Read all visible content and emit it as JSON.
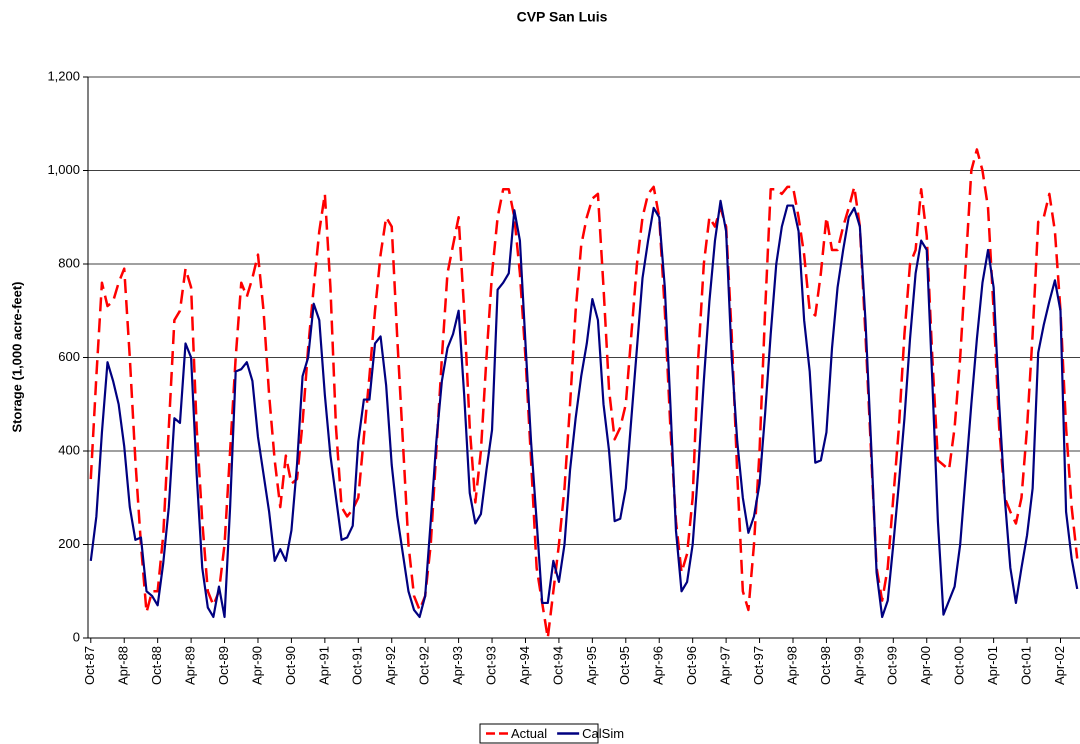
{
  "chart_data": {
    "type": "line",
    "title": "CVP San Luis",
    "y_label": "Storage (1,000 acre-feet)",
    "categories": [
      "Oct-87",
      null,
      null,
      null,
      null,
      null,
      "Apr-88",
      null,
      null,
      null,
      null,
      null,
      "Oct-88",
      null,
      null,
      null,
      null,
      null,
      "Apr-89",
      null,
      null,
      null,
      null,
      null,
      "Oct-89",
      null,
      null,
      null,
      null,
      null,
      "Apr-90",
      null,
      null,
      null,
      null,
      null,
      "Oct-90",
      null,
      null,
      null,
      null,
      null,
      "Apr-91",
      null,
      null,
      null,
      null,
      null,
      "Oct-91",
      null,
      null,
      null,
      null,
      null,
      "Apr-92",
      null,
      null,
      null,
      null,
      null,
      "Oct-92",
      null,
      null,
      null,
      null,
      null,
      "Apr-93",
      null,
      null,
      null,
      null,
      null,
      "Oct-93",
      null,
      null,
      null,
      null,
      null,
      "Apr-94",
      null,
      null,
      null,
      null,
      null,
      "Oct-94",
      null,
      null,
      null,
      null,
      null,
      "Apr-95",
      null,
      null,
      null,
      null,
      null,
      "Oct-95",
      null,
      null,
      null,
      null,
      null,
      "Apr-96",
      null,
      null,
      null,
      null,
      null,
      "Oct-96",
      null,
      null,
      null,
      null,
      null,
      "Apr-97",
      null,
      null,
      null,
      null,
      null,
      "Oct-97",
      null,
      null,
      null,
      null,
      null,
      "Apr-98",
      null,
      null,
      null,
      null,
      null,
      "Oct-98",
      null,
      null,
      null,
      null,
      null,
      "Apr-99",
      null,
      null,
      null,
      null,
      null,
      "Oct-99",
      null,
      null,
      null,
      null,
      null,
      "Apr-00",
      null,
      null,
      null,
      null,
      null,
      "Oct-00",
      null,
      null,
      null,
      null,
      null,
      "Apr-01",
      null,
      null,
      null,
      null,
      null,
      "Oct-01",
      null,
      null,
      null,
      null,
      null,
      "Apr-02",
      null,
      null,
      null
    ],
    "series": [
      {
        "name": "Actual",
        "color": "#ff0000",
        "dashed": true,
        "values": [
          340,
          560,
          760,
          710,
          720,
          760,
          790,
          600,
          380,
          200,
          55,
          100,
          100,
          220,
          450,
          680,
          700,
          790,
          750,
          450,
          250,
          100,
          70,
          100,
          200,
          400,
          600,
          760,
          730,
          770,
          820,
          700,
          520,
          380,
          280,
          390,
          330,
          340,
          460,
          620,
          750,
          870,
          950,
          750,
          450,
          280,
          260,
          275,
          300,
          430,
          560,
          700,
          820,
          900,
          880,
          640,
          420,
          200,
          90,
          60,
          90,
          200,
          400,
          600,
          780,
          840,
          900,
          700,
          450,
          290,
          400,
          600,
          780,
          900,
          960,
          960,
          900,
          780,
          600,
          380,
          150,
          75,
          0,
          100,
          200,
          320,
          500,
          700,
          840,
          900,
          940,
          950,
          750,
          530,
          425,
          450,
          500,
          650,
          800,
          900,
          950,
          965,
          900,
          700,
          450,
          250,
          140,
          180,
          300,
          600,
          800,
          900,
          880,
          920,
          880,
          650,
          350,
          100,
          60,
          200,
          400,
          700,
          960,
          960,
          950,
          965,
          965,
          900,
          820,
          700,
          690,
          780,
          900,
          830,
          830,
          880,
          920,
          965,
          880,
          650,
          400,
          150,
          80,
          150,
          300,
          450,
          650,
          800,
          830,
          960,
          860,
          600,
          380,
          370,
          360,
          450,
          600,
          800,
          1000,
          1045,
          1000,
          920,
          700,
          450,
          300,
          270,
          245,
          300,
          450,
          650,
          890,
          900,
          950,
          870,
          700,
          450,
          280,
          170
        ]
      },
      {
        "name": "CalSim",
        "color": "#000080",
        "dashed": false,
        "values": [
          165,
          260,
          440,
          590,
          550,
          500,
          410,
          280,
          210,
          215,
          100,
          90,
          70,
          160,
          280,
          470,
          460,
          630,
          600,
          350,
          150,
          65,
          45,
          110,
          45,
          280,
          570,
          575,
          590,
          550,
          430,
          350,
          270,
          165,
          190,
          165,
          230,
          370,
          560,
          600,
          715,
          680,
          520,
          390,
          300,
          210,
          215,
          240,
          420,
          510,
          510,
          630,
          645,
          540,
          370,
          260,
          180,
          100,
          60,
          45,
          90,
          250,
          420,
          550,
          620,
          650,
          700,
          520,
          310,
          245,
          265,
          360,
          445,
          745,
          760,
          780,
          915,
          850,
          630,
          420,
          250,
          75,
          75,
          165,
          120,
          200,
          360,
          470,
          560,
          630,
          725,
          680,
          500,
          400,
          250,
          255,
          320,
          470,
          620,
          770,
          850,
          920,
          900,
          750,
          500,
          230,
          100,
          120,
          200,
          360,
          550,
          720,
          850,
          935,
          870,
          600,
          420,
          300,
          225,
          260,
          330,
          480,
          650,
          800,
          880,
          925,
          925,
          870,
          680,
          570,
          375,
          380,
          440,
          620,
          750,
          830,
          900,
          920,
          880,
          680,
          420,
          140,
          45,
          80,
          200,
          330,
          470,
          640,
          780,
          850,
          830,
          550,
          250,
          50,
          80,
          110,
          200,
          350,
          500,
          640,
          760,
          830,
          750,
          500,
          300,
          150,
          75,
          150,
          220,
          320,
          610,
          670,
          720,
          765,
          700,
          270,
          170,
          105
        ]
      }
    ],
    "ylim": [
      0,
      1200
    ],
    "yticks": [
      0,
      200,
      400,
      600,
      800,
      {
        "value": 1000,
        "label": "1,000"
      },
      {
        "value": 1200,
        "label": "1,200"
      }
    ],
    "grid": true,
    "legend": "bottom"
  }
}
